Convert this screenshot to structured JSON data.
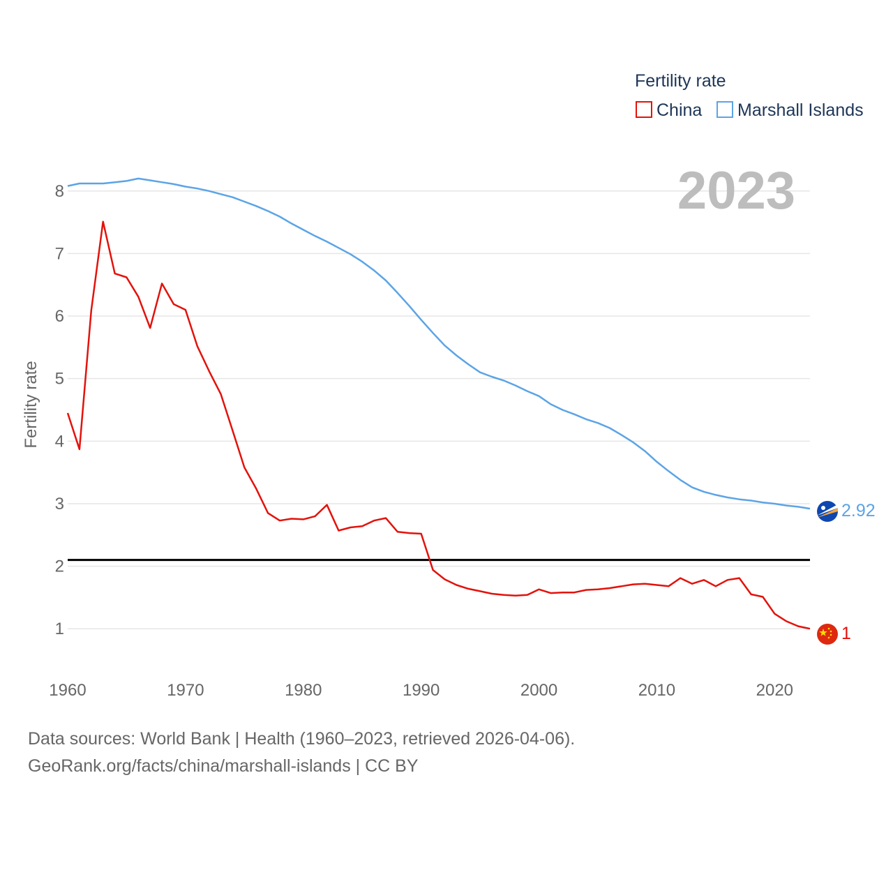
{
  "chart_data": {
    "type": "line",
    "legend_title": "Fertility rate",
    "ylabel": "Fertility rate",
    "year_label": "2023",
    "ylim": [
      0.4,
      8.6
    ],
    "xlim": [
      1960,
      2023
    ],
    "x_ticks": [
      1960,
      1970,
      1980,
      1990,
      2000,
      2010,
      2020
    ],
    "y_ticks": [
      1,
      2,
      3,
      4,
      5,
      6,
      7,
      8
    ],
    "reference_line": 2.1,
    "x": [
      1960,
      1961,
      1962,
      1963,
      1964,
      1965,
      1966,
      1967,
      1968,
      1969,
      1970,
      1971,
      1972,
      1973,
      1974,
      1975,
      1976,
      1977,
      1978,
      1979,
      1980,
      1981,
      1982,
      1983,
      1984,
      1985,
      1986,
      1987,
      1988,
      1989,
      1990,
      1991,
      1992,
      1993,
      1994,
      1995,
      1996,
      1997,
      1998,
      1999,
      2000,
      2001,
      2002,
      2003,
      2004,
      2005,
      2006,
      2007,
      2008,
      2009,
      2010,
      2011,
      2012,
      2013,
      2014,
      2015,
      2016,
      2017,
      2018,
      2019,
      2020,
      2021,
      2022,
      2023
    ],
    "series": [
      {
        "name": "China",
        "color": "#e3120b",
        "end_label": "1",
        "values": [
          4.45,
          3.87,
          6.09,
          7.51,
          6.68,
          6.62,
          6.31,
          5.81,
          6.52,
          6.19,
          6.1,
          5.52,
          5.12,
          4.75,
          4.17,
          3.58,
          3.24,
          2.85,
          2.73,
          2.76,
          2.75,
          2.8,
          2.98,
          2.57,
          2.62,
          2.64,
          2.73,
          2.77,
          2.55,
          2.53,
          2.52,
          1.94,
          1.79,
          1.7,
          1.64,
          1.6,
          1.56,
          1.54,
          1.53,
          1.54,
          1.63,
          1.57,
          1.58,
          1.58,
          1.62,
          1.63,
          1.65,
          1.68,
          1.71,
          1.72,
          1.7,
          1.68,
          1.81,
          1.72,
          1.78,
          1.68,
          1.78,
          1.81,
          1.55,
          1.51,
          1.24,
          1.12,
          1.04,
          1.0
        ]
      },
      {
        "name": "Marshall Islands",
        "color": "#5ba4e6",
        "end_label": "2.92",
        "values": [
          8.08,
          8.12,
          8.12,
          8.12,
          8.14,
          8.16,
          8.2,
          8.17,
          8.14,
          8.11,
          8.07,
          8.04,
          8.0,
          7.95,
          7.9,
          7.83,
          7.76,
          7.68,
          7.59,
          7.48,
          7.38,
          7.28,
          7.19,
          7.09,
          6.99,
          6.87,
          6.73,
          6.57,
          6.37,
          6.16,
          5.94,
          5.73,
          5.53,
          5.37,
          5.23,
          5.1,
          5.03,
          4.97,
          4.89,
          4.8,
          4.72,
          4.59,
          4.5,
          4.43,
          4.35,
          4.29,
          4.21,
          4.1,
          3.98,
          3.84,
          3.67,
          3.52,
          3.38,
          3.26,
          3.19,
          3.14,
          3.1,
          3.07,
          3.05,
          3.02,
          3.0,
          2.97,
          2.95,
          2.92
        ]
      }
    ]
  },
  "footer": {
    "line1": "Data sources: World Bank | Health (1960–2023, retrieved 2026-04-06).",
    "line2": "GeoRank.org/facts/china/marshall-islands | CC BY"
  }
}
